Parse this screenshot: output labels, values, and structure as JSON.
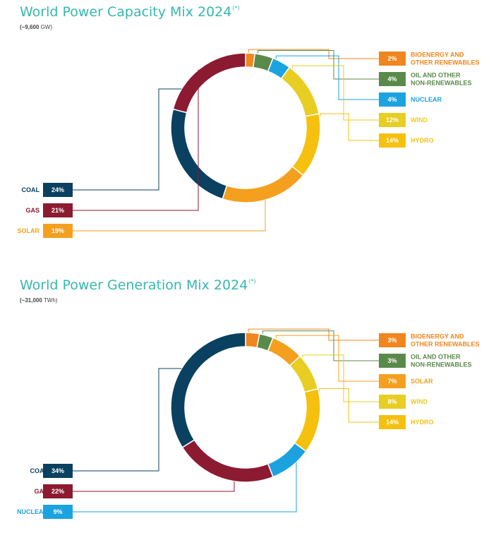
{
  "colors": {
    "coal": "#0a4060",
    "gas": "#8c1a30",
    "solar": "#f4a01e",
    "hydro": "#f5c10e",
    "wind": "#e8cd22",
    "nuclear": "#1ba3e0",
    "oil": "#5a8a4a",
    "bio": "#f0861e",
    "title": "#35b8b1"
  },
  "chart_data": [
    {
      "type": "pie",
      "title": "World Power Capacity Mix 2024",
      "title_note": "(*)",
      "subtitle_value": "(~9,600",
      "subtitle_unit": " GW)",
      "slices": [
        {
          "key": "bio",
          "label": "BIOENERGY AND OTHER RENEWABLES",
          "label_lines": [
            "BIOENERGY AND",
            "OTHER RENEWABLES"
          ],
          "value": 2,
          "display": "2%",
          "side": "right"
        },
        {
          "key": "oil",
          "label": "OIL AND OTHER NON-RENEWABLES",
          "label_lines": [
            "OIL AND OTHER",
            "NON-RENEWABLES"
          ],
          "value": 4,
          "display": "4%",
          "side": "right"
        },
        {
          "key": "nuclear",
          "label": "NUCLEAR",
          "label_lines": [
            "NUCLEAR"
          ],
          "value": 4,
          "display": "4%",
          "side": "right"
        },
        {
          "key": "wind",
          "label": "WIND",
          "label_lines": [
            "WIND"
          ],
          "value": 12,
          "display": "12%",
          "side": "right"
        },
        {
          "key": "hydro",
          "label": "HYDRO",
          "label_lines": [
            "HYDRO"
          ],
          "value": 14,
          "display": "14%",
          "side": "right"
        },
        {
          "key": "solar",
          "label": "SOLAR",
          "label_lines": [
            "SOLAR"
          ],
          "value": 19,
          "display": "19%",
          "side": "left"
        },
        {
          "key": "coal",
          "label": "COAL",
          "label_lines": [
            "COAL"
          ],
          "value": 24,
          "display": "24%",
          "side": "left"
        },
        {
          "key": "gas",
          "label": "GAS",
          "label_lines": [
            "GAS"
          ],
          "value": 21,
          "display": "21%",
          "side": "left"
        }
      ],
      "left_order": [
        "coal",
        "gas",
        "solar"
      ]
    },
    {
      "type": "pie",
      "title": "World Power Generation Mix 2024",
      "title_note": "(*)",
      "subtitle_value": "(~31,000",
      "subtitle_unit": " TWh)",
      "slices": [
        {
          "key": "bio",
          "label": "BIOENERGY AND OTHER RENEWABLES",
          "label_lines": [
            "BIOENERGY AND",
            "OTHER RENEWABLES"
          ],
          "value": 3,
          "display": "3%",
          "side": "right"
        },
        {
          "key": "oil",
          "label": "OIL AND OTHER NON-RENEWABLES",
          "label_lines": [
            "OIL AND OTHER",
            "NON-RENEWABLES"
          ],
          "value": 3,
          "display": "3%",
          "side": "right"
        },
        {
          "key": "solar",
          "label": "SOLAR",
          "label_lines": [
            "SOLAR"
          ],
          "value": 7,
          "display": "7%",
          "side": "right"
        },
        {
          "key": "wind",
          "label": "WIND",
          "label_lines": [
            "WIND"
          ],
          "value": 8,
          "display": "8%",
          "side": "right"
        },
        {
          "key": "hydro",
          "label": "HYDRO",
          "label_lines": [
            "HYDRO"
          ],
          "value": 14,
          "display": "14%",
          "side": "right"
        },
        {
          "key": "nuclear",
          "label": "NUCLEAR",
          "label_lines": [
            "NUCLEAR"
          ],
          "value": 9,
          "display": "9%",
          "side": "left"
        },
        {
          "key": "gas",
          "label": "GAS",
          "label_lines": [
            "GAS"
          ],
          "value": 22,
          "display": "22%",
          "side": "left"
        },
        {
          "key": "coal",
          "label": "COAL",
          "label_lines": [
            "COAL"
          ],
          "value": 34,
          "display": "34%",
          "side": "left"
        }
      ],
      "left_order": [
        "coal",
        "gas",
        "nuclear"
      ]
    }
  ]
}
